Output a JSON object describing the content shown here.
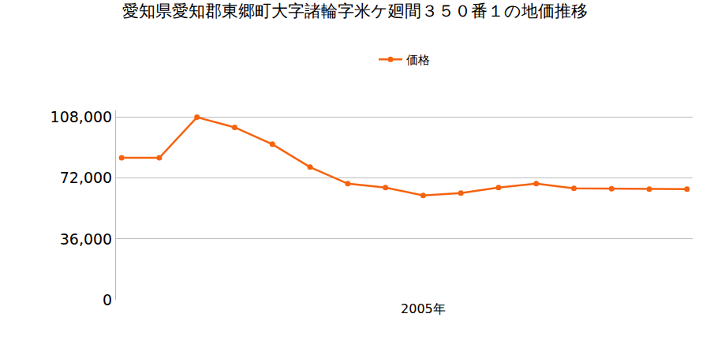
{
  "chart_data": {
    "type": "line",
    "title": "愛知県愛知郡東郷町大字諸輪字米ケ廻間３５０番１の地価推移",
    "categories": [
      null,
      null,
      null,
      null,
      null,
      null,
      null,
      null,
      "2005年",
      null,
      null,
      null,
      null,
      null,
      null,
      null
    ],
    "series": [
      {
        "name": "価格",
        "color": "#f5630f",
        "marker": "circle",
        "values": [
          84000,
          84000,
          108000,
          102000,
          92000,
          78500,
          68700,
          66400,
          61700,
          63100,
          66400,
          68700,
          65900,
          65700,
          65500,
          65500
        ]
      }
    ],
    "ylim": [
      0,
      112000
    ],
    "yticks": [
      0,
      {
        "value": 36000,
        "label": "36,000"
      },
      {
        "value": 72000,
        "label": "72,000"
      },
      {
        "value": 108000,
        "label": "108,000"
      }
    ],
    "grid": true,
    "legend": "top"
  }
}
